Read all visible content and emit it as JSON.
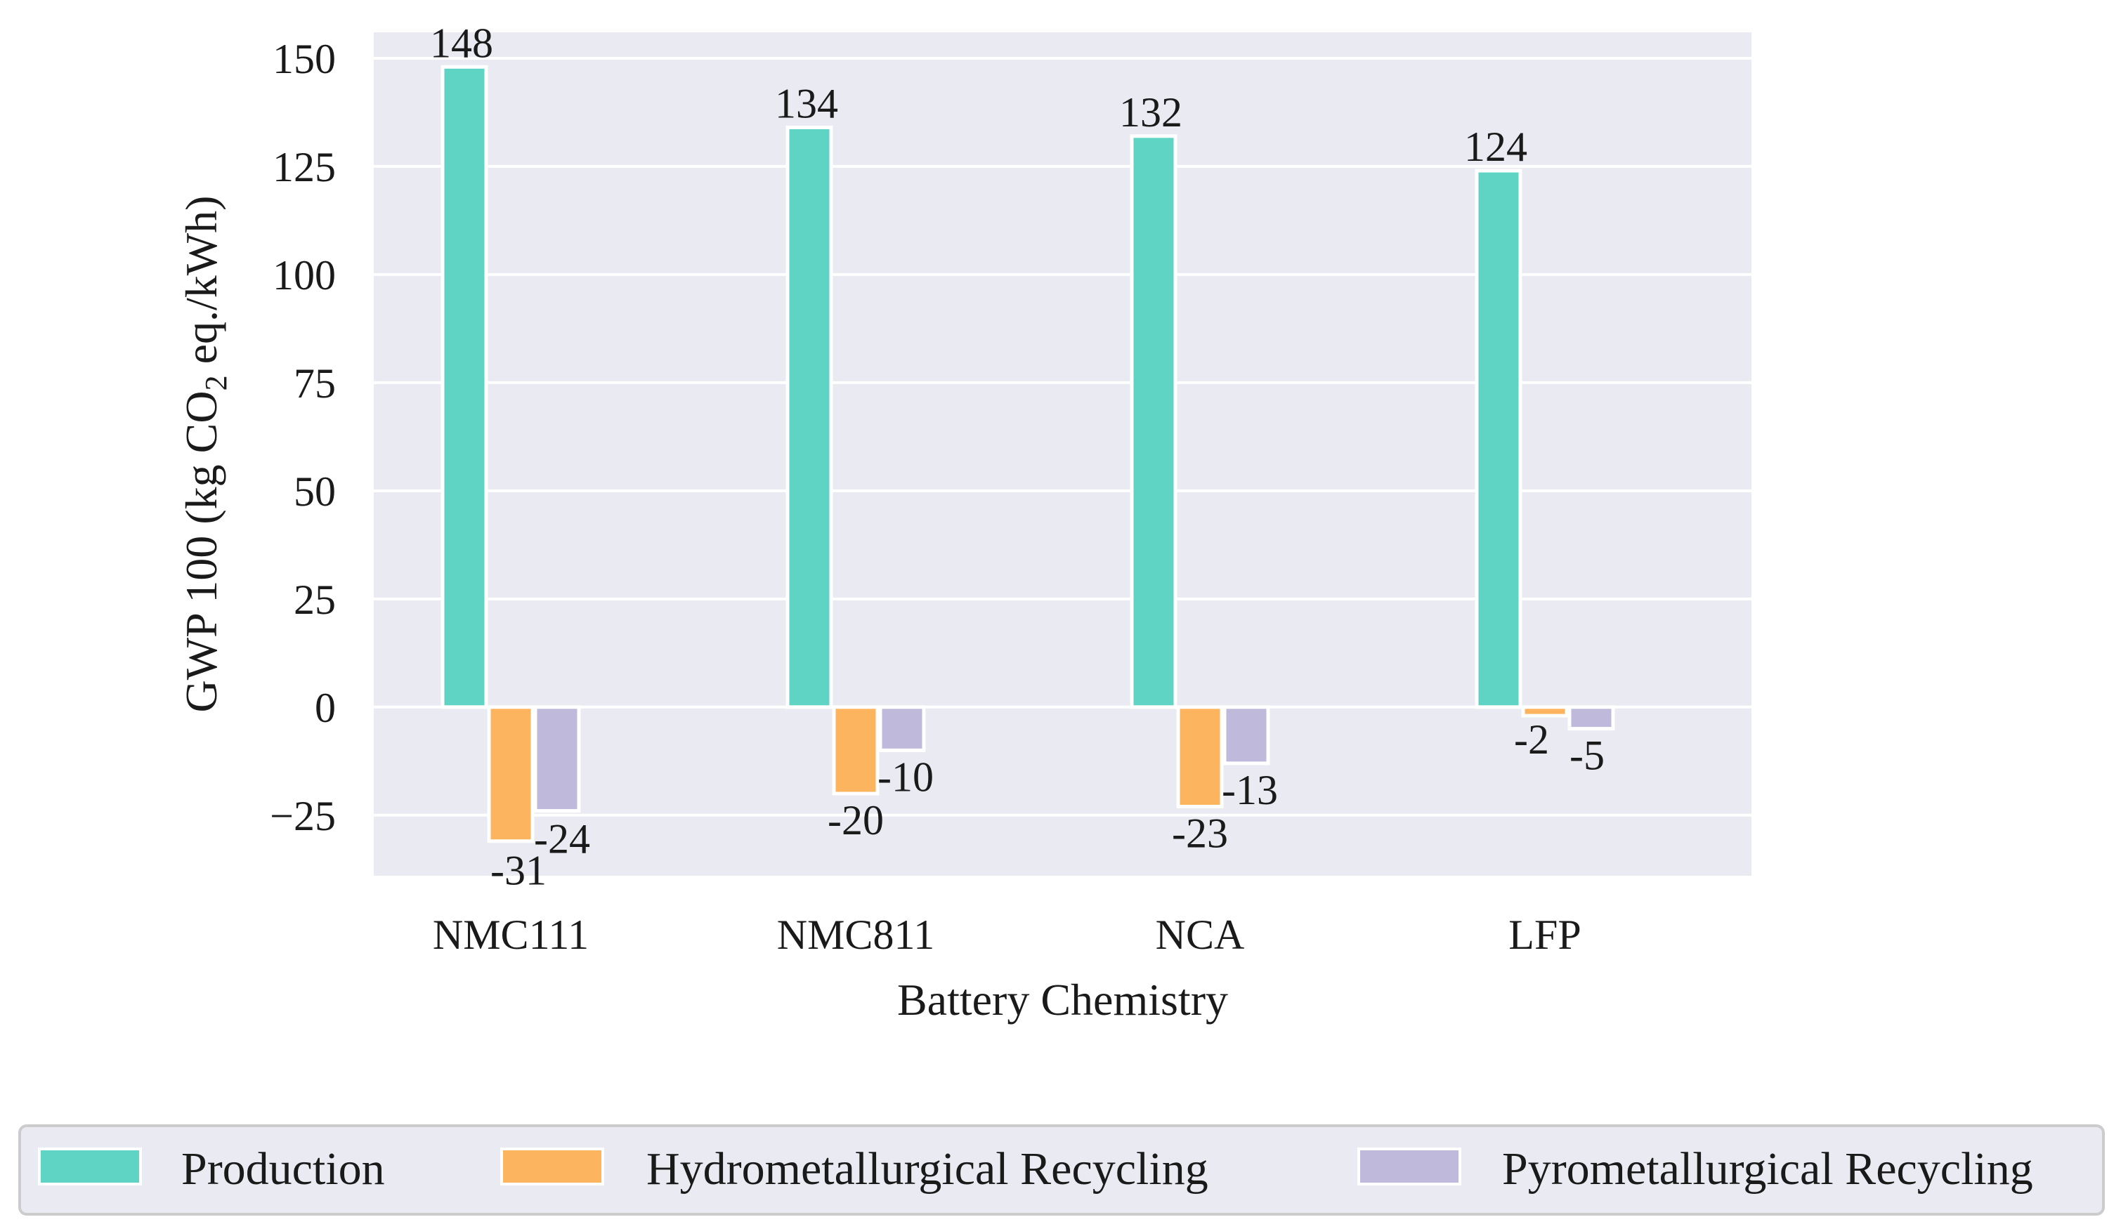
{
  "chart_data": {
    "type": "bar",
    "title": "",
    "xlabel": "Battery Chemistry",
    "ylabel_parts": {
      "before": "GWP 100 (kg CO",
      "subscript": "2",
      "after": " eq./kWh)"
    },
    "categories": [
      "NMC111",
      "NMC811",
      "NCA",
      "LFP"
    ],
    "series": [
      {
        "name": "Production",
        "values": [
          148,
          134,
          132,
          124
        ],
        "color": "#5fd4c4"
      },
      {
        "name": "Hydrometallurgical Recycling",
        "values": [
          -31,
          -20,
          -23,
          -2
        ],
        "color": "#fdb45e"
      },
      {
        "name": "Pyrometallurgical Recycling",
        "values": [
          -24,
          -10,
          -13,
          -5
        ],
        "color": "#bfbadb"
      }
    ],
    "data_labels": [
      [
        "148",
        "134",
        "132",
        "124"
      ],
      [
        "-31",
        "-20",
        "-23",
        "-2"
      ],
      [
        "-24",
        "-10",
        "-13",
        "-5"
      ]
    ],
    "yticks": [
      150,
      125,
      100,
      75,
      50,
      25,
      0,
      -25
    ],
    "ytick_labels": [
      "150",
      "125",
      "100",
      "75",
      "50",
      "25",
      "0",
      "−25"
    ],
    "ylim": [
      -39,
      156
    ],
    "grid": true,
    "legend_position": "bottom",
    "colors": {
      "plot_background": "#eaeaf2",
      "grid": "#ffffff",
      "bar_edge": "#ffffff"
    }
  }
}
